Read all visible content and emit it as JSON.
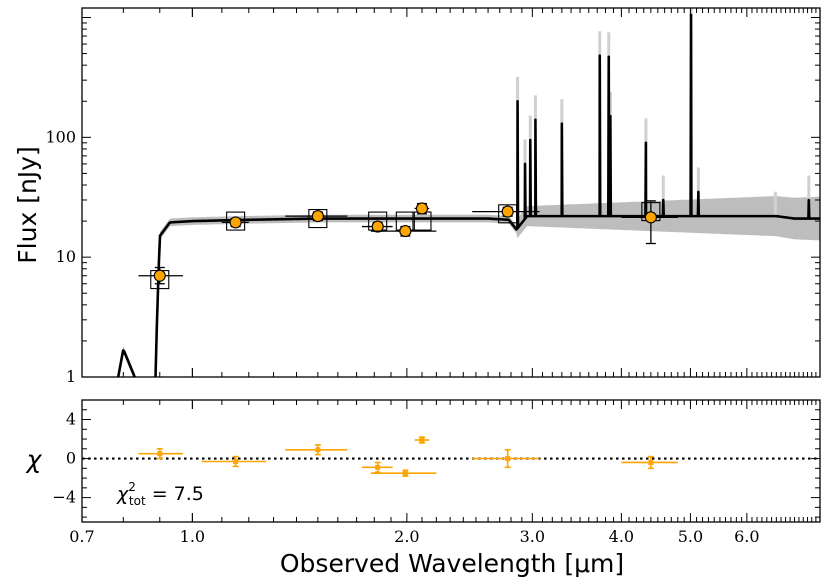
{
  "chart_data": [
    {
      "type": "scatter",
      "panel": "sed",
      "ylabel": "Flux [nJy]",
      "xscale": "log",
      "yscale": "log",
      "xlim": [
        0.7,
        7.6
      ],
      "ylim": [
        1,
        1200
      ],
      "yticks": [
        {
          "value": 1,
          "label": "1"
        },
        {
          "value": 10,
          "label": "10"
        },
        {
          "value": 100,
          "label": "100"
        }
      ],
      "colors": {
        "points": "#ffa500",
        "model": "#000000",
        "model_band": "#bdbdbd",
        "model_boxes": "#000000"
      },
      "series": [
        {
          "kind": "photometry-with-errors",
          "points": [
            {
              "x": 0.9,
              "y": 7.0,
              "xerr": [
                0.06,
                0.07
              ],
              "yerr": [
                1.0,
                1.2
              ]
            },
            {
              "x": 1.15,
              "y": 19.5,
              "xerr": [
                0.05,
                0.05
              ],
              "yerr": [
                1.5,
                1.5
              ]
            },
            {
              "x": 1.5,
              "y": 22.0,
              "xerr": [
                0.15,
                0.15
              ],
              "yerr": [
                1.8,
                1.8
              ]
            },
            {
              "x": 1.82,
              "y": 18.0,
              "xerr": [
                0.09,
                0.09
              ],
              "yerr": [
                1.5,
                1.5
              ]
            },
            {
              "x": 1.99,
              "y": 16.5,
              "xerr": [
                0.21,
                0.21
              ],
              "yerr": [
                1.5,
                1.5
              ]
            },
            {
              "x": 2.1,
              "y": 25.5,
              "xerr": [
                0.05,
                0.05
              ],
              "yerr": [
                2.5,
                2.5
              ]
            },
            {
              "x": 2.77,
              "y": 24.0,
              "xerr": [
                0.3,
                0.3
              ],
              "yerr": [
                2.0,
                2.0
              ]
            },
            {
              "x": 4.4,
              "y": 21.5,
              "xerr": [
                0.4,
                0.4
              ],
              "yerr": [
                8.5,
                8.0
              ]
            }
          ]
        },
        {
          "kind": "model-photometry-boxes",
          "points": [
            {
              "x": 0.9,
              "y": 6.5
            },
            {
              "x": 1.15,
              "y": 20.0
            },
            {
              "x": 1.5,
              "y": 21.0
            },
            {
              "x": 1.82,
              "y": 20.0
            },
            {
              "x": 1.99,
              "y": 20.0
            },
            {
              "x": 2.1,
              "y": 20.0
            },
            {
              "x": 2.77,
              "y": 23.0
            },
            {
              "x": 4.4,
              "y": 24.0
            }
          ]
        },
        {
          "kind": "model-spectrum",
          "continuum": [
            [
              0.7,
              0.3
            ],
            [
              0.77,
              0.5
            ],
            [
              0.8,
              1.7
            ],
            [
              0.83,
              1.0
            ],
            [
              0.86,
              0.3
            ],
            [
              0.885,
              0.5
            ],
            [
              0.892,
              3
            ],
            [
              0.9,
              15
            ],
            [
              0.93,
              19.5
            ],
            [
              1.0,
              20
            ],
            [
              1.2,
              20.5
            ],
            [
              1.5,
              21
            ],
            [
              1.8,
              21
            ],
            [
              2.2,
              21
            ],
            [
              2.6,
              21
            ],
            [
              2.78,
              20.5
            ],
            [
              2.85,
              17
            ],
            [
              2.95,
              22
            ],
            [
              3.5,
              22
            ],
            [
              4.0,
              22
            ],
            [
              5.0,
              22
            ],
            [
              6.0,
              22
            ],
            [
              6.6,
              22
            ],
            [
              7.0,
              21
            ],
            [
              7.6,
              21
            ]
          ],
          "lines": [
            [
              2.86,
              200
            ],
            [
              2.93,
              60
            ],
            [
              2.98,
              95
            ],
            [
              3.03,
              140
            ],
            [
              3.3,
              130
            ],
            [
              3.73,
              480
            ],
            [
              3.84,
              470
            ],
            [
              3.86,
              150
            ],
            [
              4.33,
              90
            ],
            [
              4.58,
              30
            ],
            [
              5.01,
              1050
            ],
            [
              5.13,
              35
            ],
            [
              6.58,
              22
            ],
            [
              7.33,
              30
            ]
          ],
          "band_width_dex": 0.08
        }
      ]
    },
    {
      "type": "scatter",
      "panel": "residuals",
      "xlabel": "Observed Wavelength [μm]",
      "ylabel": "χ",
      "xscale": "log",
      "xlim": [
        0.7,
        7.6
      ],
      "ylim": [
        -6.5,
        6
      ],
      "yticks": [
        -4,
        0,
        4
      ],
      "xticks": [
        {
          "value": 0.7,
          "label": "0.7"
        },
        {
          "value": 1.0,
          "label": "1.0"
        },
        {
          "value": 2.0,
          "label": "2.0"
        },
        {
          "value": 3.0,
          "label": "3.0"
        },
        {
          "value": 4.0,
          "label": "4.0"
        },
        {
          "value": 5.0,
          "label": "5.0"
        },
        {
          "value": 6.0,
          "label": "6.0"
        }
      ],
      "reference_line": 0,
      "annotation": "χ²tot = 7.5",
      "points": [
        {
          "x": 0.9,
          "y": 0.5,
          "xerr": [
            0.06,
            0.07
          ],
          "yerr": 0.5
        },
        {
          "x": 1.15,
          "y": -0.3,
          "xerr": [
            0.12,
            0.12
          ],
          "yerr": 0.5
        },
        {
          "x": 1.5,
          "y": 0.9,
          "xerr": [
            0.15,
            0.15
          ],
          "yerr": 0.5
        },
        {
          "x": 1.82,
          "y": -0.9,
          "xerr": [
            0.09,
            0.09
          ],
          "yerr": 0.5
        },
        {
          "x": 1.99,
          "y": -1.5,
          "xerr": [
            0.21,
            0.21
          ],
          "yerr": 0.3
        },
        {
          "x": 2.1,
          "y": 1.9,
          "xerr": [
            0.05,
            0.05
          ],
          "yerr": 0.3
        },
        {
          "x": 2.77,
          "y": 0.0,
          "xerr": [
            0.3,
            0.3
          ],
          "yerr": 0.9
        },
        {
          "x": 4.4,
          "y": -0.4,
          "xerr": [
            0.4,
            0.4
          ],
          "yerr": 0.6
        }
      ]
    }
  ],
  "axis_labels": {
    "top_y": "Flux [nJy]",
    "bottom_y": "χ",
    "x": "Observed Wavelength [μm]"
  },
  "annotation": {
    "chi_symbol": "χ",
    "chi_sup": "2",
    "chi_sub": "tot",
    "chi_rest": " = 7.5"
  }
}
